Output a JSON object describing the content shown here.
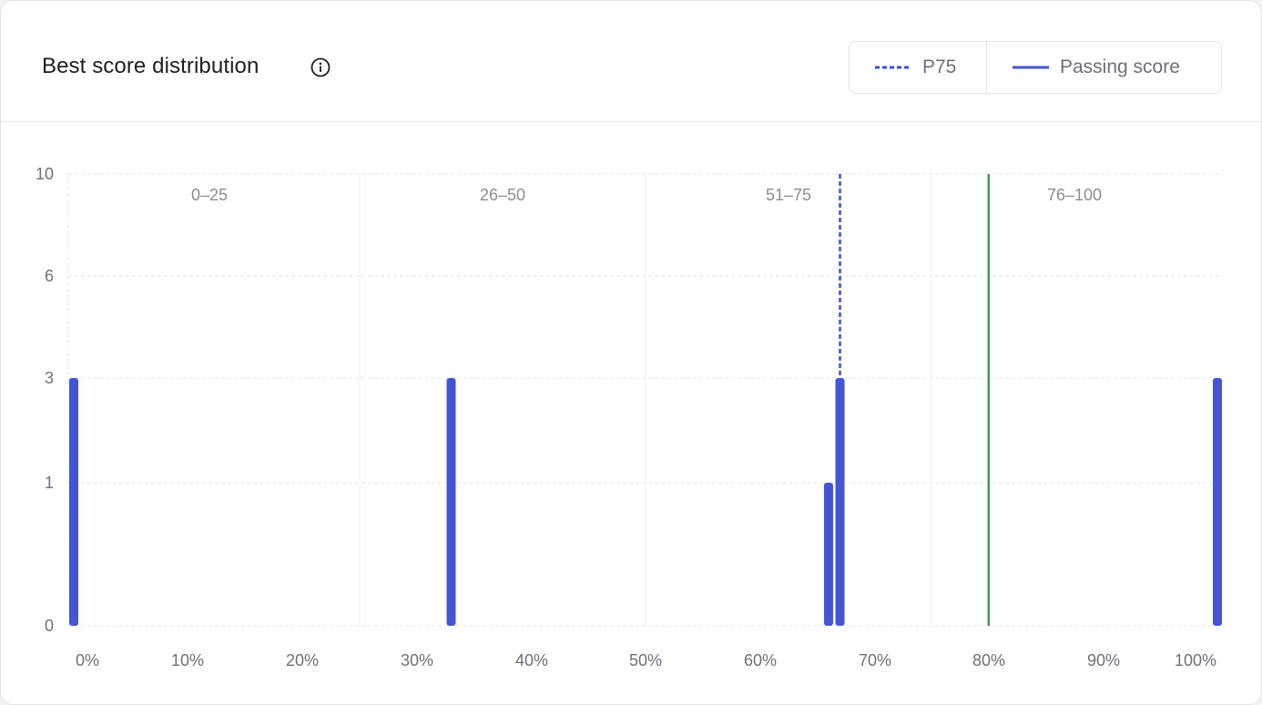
{
  "card": {
    "title": "Best score distribution",
    "info_icon": "info-circle-icon"
  },
  "legend": {
    "p75_label": "P75",
    "passing_label": "Passing score"
  },
  "colors": {
    "bar": "#4355d4",
    "p75_line": "#3d4fd0",
    "passing_line": "#3f9a5d",
    "grid": "#e3e4e8",
    "axis_text": "#6e7079",
    "range_text": "#8b8d95"
  },
  "chart_data": {
    "type": "bar",
    "title": "Best score distribution",
    "x_tick_labels": [
      "0%",
      "10%",
      "20%",
      "30%",
      "40%",
      "50%",
      "60%",
      "70%",
      "80%",
      "90%",
      "100%"
    ],
    "y_tick_labels": [
      "0",
      "1",
      "3",
      "6",
      "10"
    ],
    "y_ticks": [
      0,
      1,
      3,
      6,
      10
    ],
    "ylim": [
      0,
      10
    ],
    "y_scale": "non-linear (ticks 0, 1, 3, 6, 10)",
    "ranges": [
      "0–25",
      "26–50",
      "51–75",
      "76–100"
    ],
    "bars": [
      {
        "score": 0,
        "count": 3
      },
      {
        "score": 33,
        "count": 3
      },
      {
        "score": 66,
        "count": 1
      },
      {
        "score": 67,
        "count": 3
      },
      {
        "score": 100,
        "count": 3
      }
    ],
    "p75": 67,
    "passing_score": 80,
    "grid": true,
    "legend_position": "top-right"
  }
}
